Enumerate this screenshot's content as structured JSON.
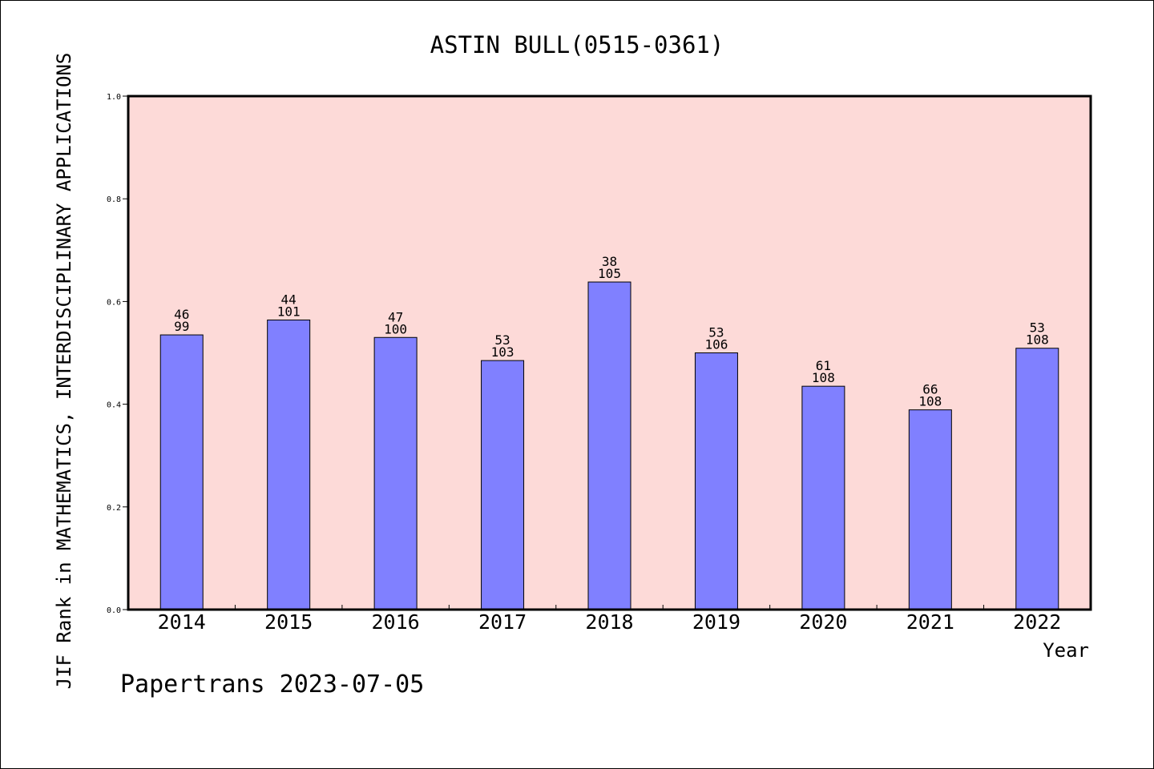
{
  "chart_data": {
    "type": "bar",
    "title": "ASTIN BULL(0515-0361)",
    "xlabel": "Year",
    "ylabel": "JIF Rank in MATHEMATICS,  INTERDISCIPLINARY APPLICATIONS",
    "categories": [
      "2014",
      "2015",
      "2016",
      "2017",
      "2018",
      "2019",
      "2020",
      "2021",
      "2022"
    ],
    "values": [
      0.535,
      0.564,
      0.53,
      0.485,
      0.638,
      0.5,
      0.435,
      0.389,
      0.509
    ],
    "rank_labels": [
      "46",
      "44",
      "47",
      "53",
      "38",
      "53",
      "61",
      "66",
      "53"
    ],
    "total_labels": [
      "99",
      "101",
      "100",
      "103",
      "105",
      "106",
      "108",
      "108",
      "108"
    ],
    "ylim": [
      0,
      1.0
    ],
    "yticks": [
      "0.0",
      "0.2",
      "0.4",
      "0.6",
      "0.8",
      "1.0"
    ],
    "grid": false,
    "legend": "none",
    "colors": {
      "plot_background": "#FDDAD8",
      "bar_fill": "#8080FF",
      "bar_stroke": "#000000"
    }
  },
  "footer": {
    "watermark": "Papertrans 2023-07-05"
  }
}
